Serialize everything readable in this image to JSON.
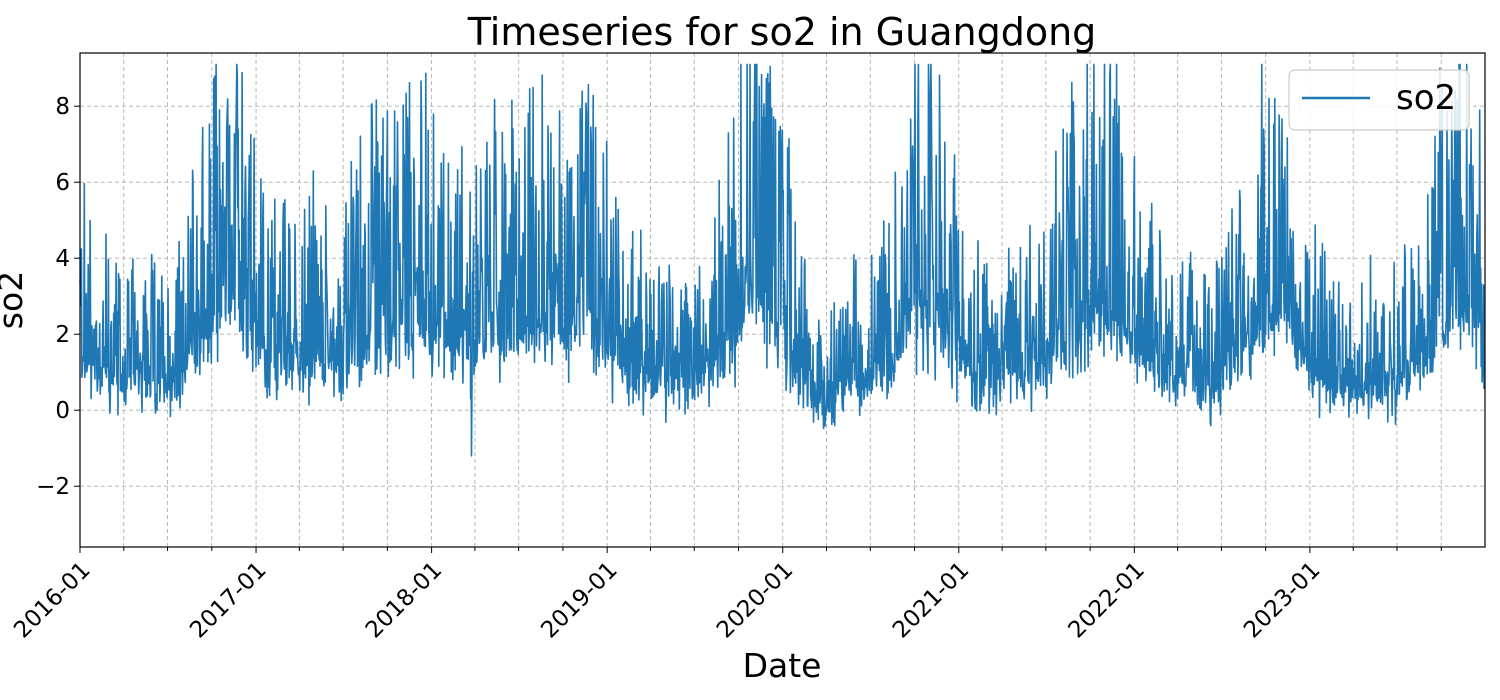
{
  "chart_data": {
    "type": "line",
    "title": "Timeseries for so2 in Guangdong",
    "xlabel": "Date",
    "ylabel": "so2",
    "x_range": [
      "2016-01-01",
      "2023-12-31"
    ],
    "ylim": [
      -3.6,
      9.4
    ],
    "yticks": [
      -2,
      0,
      2,
      4,
      6,
      8
    ],
    "ytick_labels": [
      "−2",
      "0",
      "2",
      "4",
      "6",
      "8"
    ],
    "xtick_labels": [
      "2016-01",
      "2017-01",
      "2018-01",
      "2019-01",
      "2020-01",
      "2021-01",
      "2022-01",
      "2023-01"
    ],
    "x_minor_ticks": "quarterly",
    "grid": true,
    "grid_style": "dashed",
    "legend_position": "top-right",
    "series": [
      {
        "name": "so2",
        "color": "#1f77b4",
        "frequency": "daily",
        "approx_monthly_mean": {
          "2016": [
            1.7,
            1.1,
            0.9,
            0.7,
            0.8,
            0.8,
            0.7,
            0.9,
            1.7,
            2.3,
            2.8,
            2.4
          ],
          "2017": [
            1.7,
            1.4,
            1.2,
            1.3,
            1.3,
            1.2,
            1.1,
            1.6,
            2.2,
            2.0,
            2.2,
            2.3
          ],
          "2018": [
            2.1,
            1.9,
            1.8,
            1.7,
            1.9,
            1.8,
            1.9,
            2.2,
            2.1,
            2.1,
            2.4,
            2.0
          ],
          "2019": [
            1.7,
            1.2,
            1.0,
            0.9,
            0.8,
            0.7,
            0.8,
            1.0,
            1.5,
            2.3,
            3.1,
            2.8
          ],
          "2020": [
            1.9,
            1.2,
            0.6,
            0.3,
            0.6,
            0.8,
            0.9,
            1.2,
            1.6,
            2.5,
            2.4,
            2.1
          ],
          "2021": [
            1.3,
            0.9,
            0.8,
            0.9,
            0.9,
            1.0,
            1.3,
            1.6,
            2.2,
            2.4,
            2.6,
            2.2
          ],
          "2022": [
            1.6,
            1.1,
            0.9,
            0.8,
            0.8,
            0.8,
            0.9,
            1.3,
            1.9,
            2.3,
            2.4,
            2.1
          ],
          "2023": [
            1.2,
            0.8,
            0.6,
            0.6,
            0.7,
            0.7,
            0.8,
            1.0,
            1.4,
            2.2,
            2.9,
            2.6
          ]
        },
        "observed_peaks": [
          {
            "date": "2016-11-25",
            "value": 7.4
          },
          {
            "date": "2017-11-10",
            "value": 6.2
          },
          {
            "date": "2018-10-05",
            "value": 5.6
          },
          {
            "date": "2019-11-20",
            "value": 7.7
          },
          {
            "date": "2020-11-15",
            "value": 6.7
          },
          {
            "date": "2021-11-30",
            "value": 8.0
          },
          {
            "date": "2022-11-10",
            "value": 6.4
          },
          {
            "date": "2023-12-20",
            "value": 7.9
          }
        ],
        "observed_min": {
          "date": "2018-03-25",
          "value": -1.2
        }
      }
    ]
  }
}
